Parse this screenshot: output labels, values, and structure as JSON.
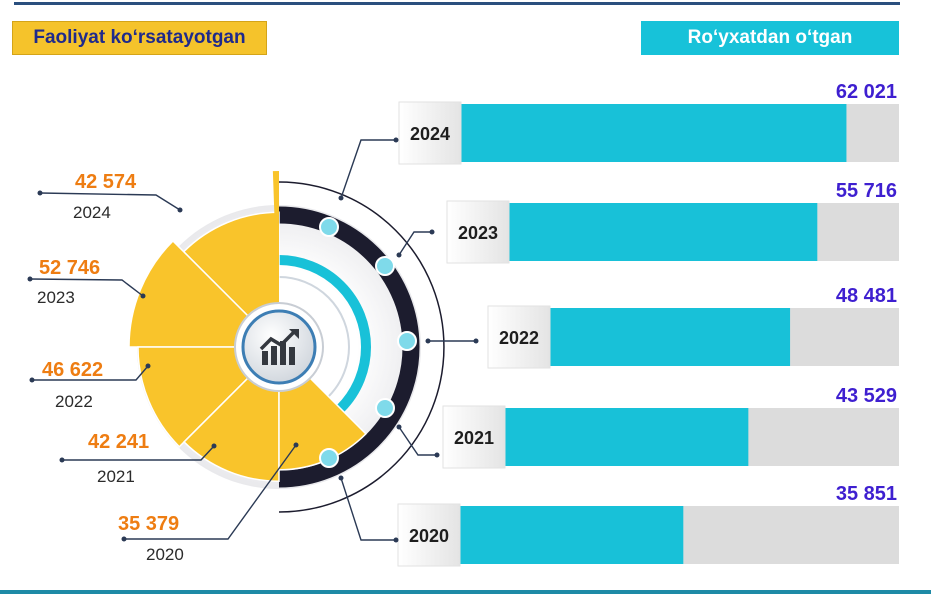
{
  "header": {
    "left_title": "Faoliyat ko‘rsatayotgan",
    "right_title": "Ro‘yxatdan o‘tgan"
  },
  "colors": {
    "active": "#f9c42b",
    "registered": "#18c1d8",
    "active_value": "#ee7d12",
    "registered_value": "#3e1fd0",
    "bar_track": "#dcdcdc",
    "ring_dark": "#1c1c2e"
  },
  "icons": {
    "center": "growth-chart-icon"
  },
  "chart_data": [
    {
      "type": "pie",
      "title": "Faoliyat ko‘rsatayotgan",
      "categories": [
        "2024",
        "2023",
        "2022",
        "2021",
        "2020"
      ],
      "values": [
        42574,
        52746,
        46622,
        42241,
        35379
      ],
      "value_labels": [
        "42 574",
        "52 746",
        "46 622",
        "42 241",
        "35 379"
      ]
    },
    {
      "type": "bar",
      "title": "Ro‘yxatdan o‘tgan",
      "categories": [
        "2024",
        "2023",
        "2022",
        "2021",
        "2020"
      ],
      "values": [
        62021,
        55716,
        48481,
        43529,
        35851
      ],
      "value_labels": [
        "62 021",
        "55 716",
        "48 481",
        "43 529",
        "35 851"
      ]
    }
  ]
}
